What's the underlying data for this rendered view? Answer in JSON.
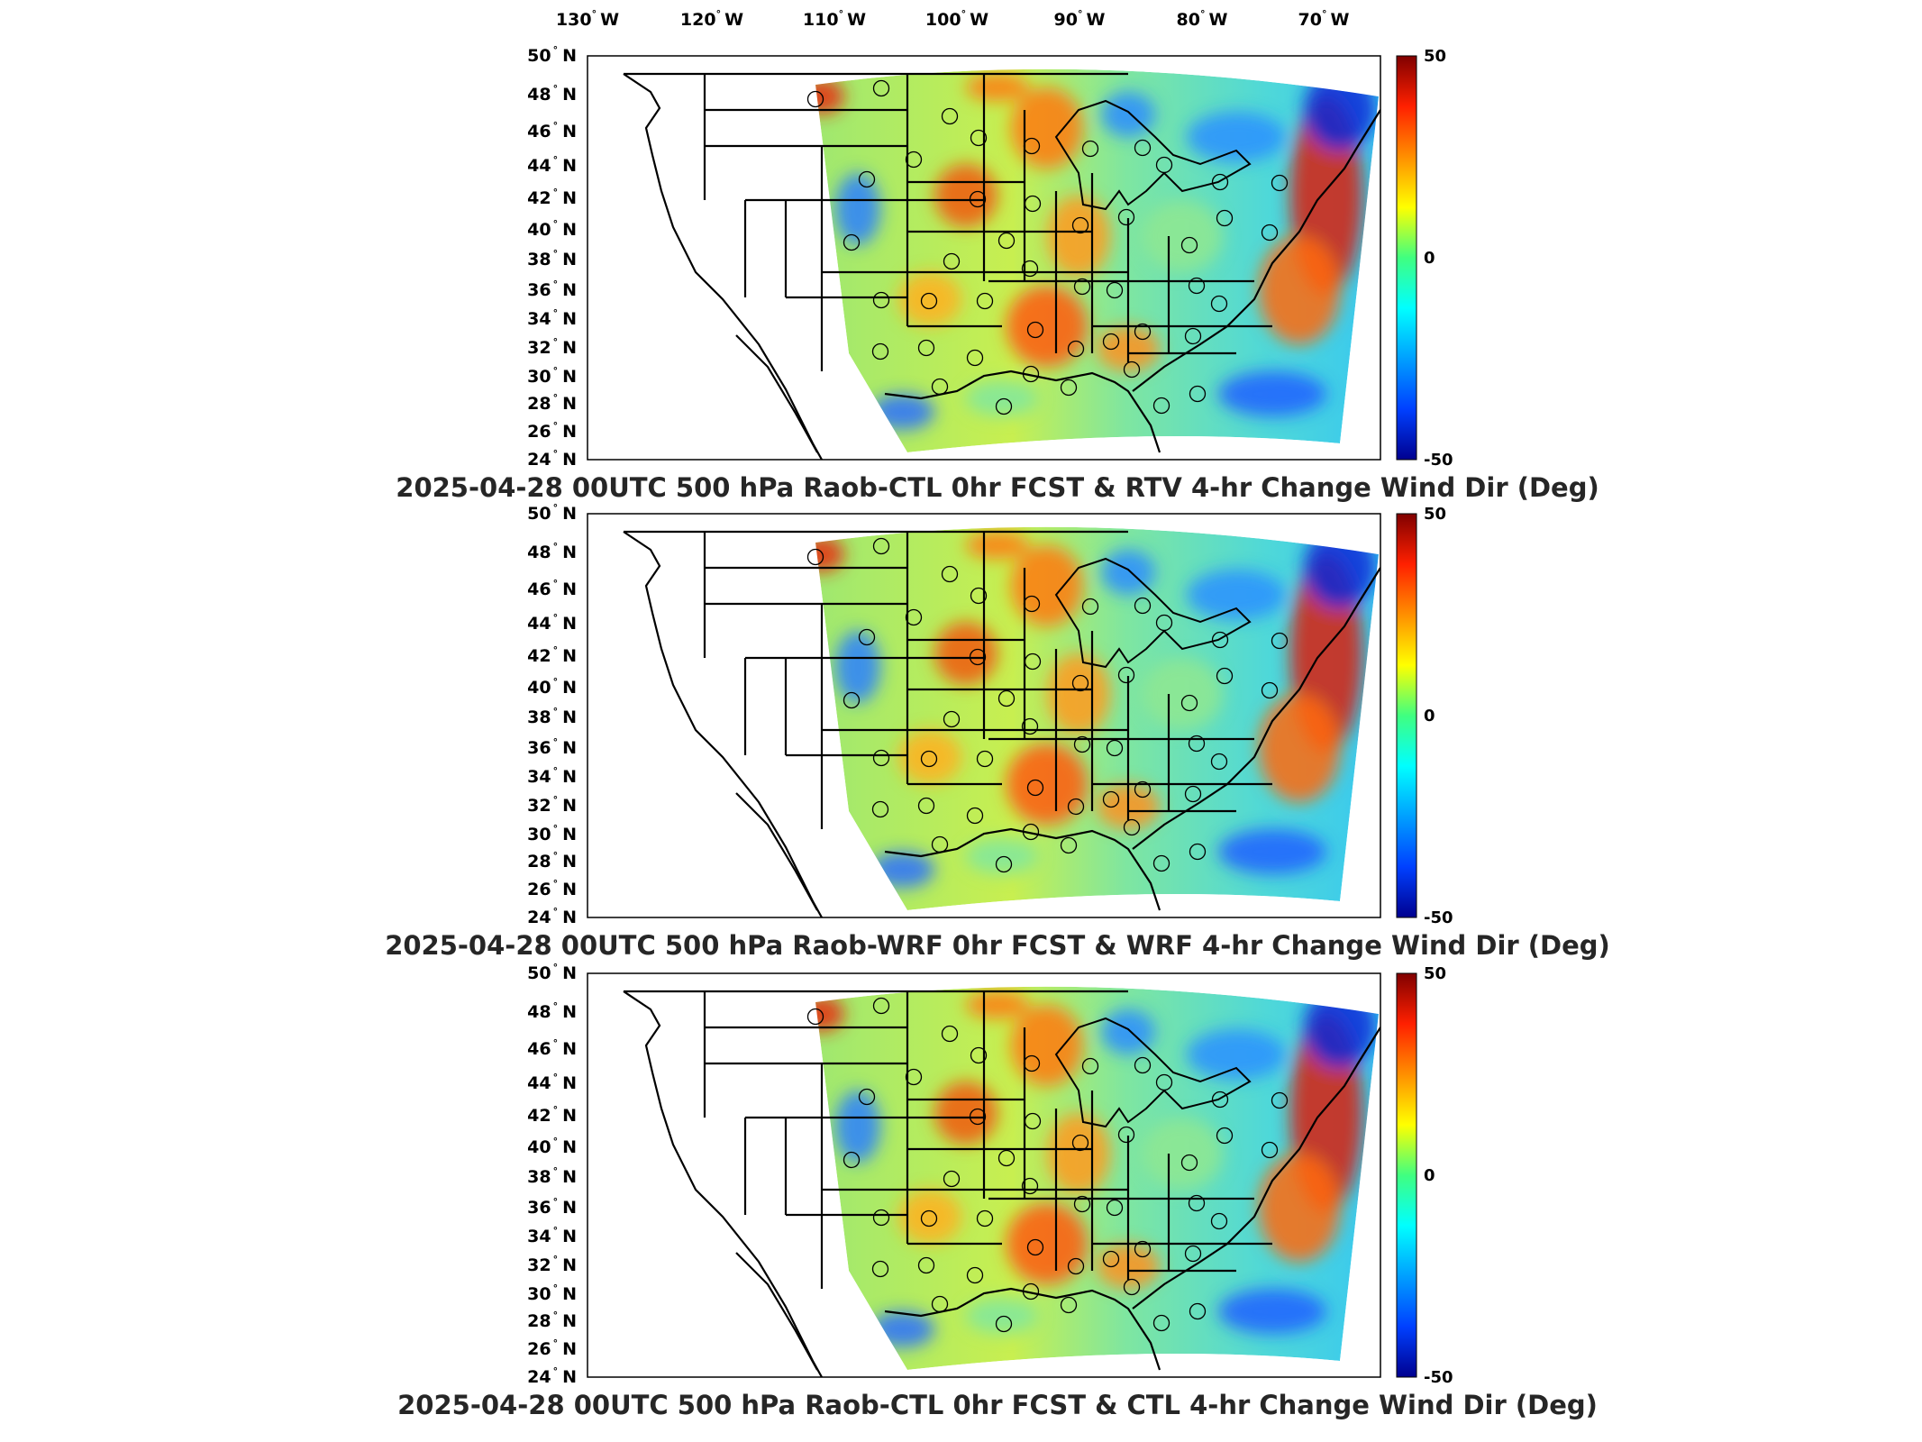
{
  "top_lon_labels": [
    {
      "deg": "130",
      "hemi": "W"
    },
    {
      "deg": "120",
      "hemi": "W"
    },
    {
      "deg": "110",
      "hemi": "W"
    },
    {
      "deg": "100",
      "hemi": "W"
    },
    {
      "deg": "90",
      "hemi": "W"
    },
    {
      "deg": "80",
      "hemi": "W"
    },
    {
      "deg": "70",
      "hemi": "W"
    }
  ],
  "lat_labels": [
    {
      "deg": "50",
      "hemi": "N"
    },
    {
      "deg": "48",
      "hemi": "N"
    },
    {
      "deg": "46",
      "hemi": "N"
    },
    {
      "deg": "44",
      "hemi": "N"
    },
    {
      "deg": "42",
      "hemi": "N"
    },
    {
      "deg": "40",
      "hemi": "N"
    },
    {
      "deg": "38",
      "hemi": "N"
    },
    {
      "deg": "36",
      "hemi": "N"
    },
    {
      "deg": "34",
      "hemi": "N"
    },
    {
      "deg": "32",
      "hemi": "N"
    },
    {
      "deg": "30",
      "hemi": "N"
    },
    {
      "deg": "28",
      "hemi": "N"
    },
    {
      "deg": "26",
      "hemi": "N"
    },
    {
      "deg": "24",
      "hemi": "N"
    }
  ],
  "colorbar": {
    "max": "50",
    "mid": "0",
    "min": "-50",
    "colors": [
      "#00008f",
      "#0040ff",
      "#00bfff",
      "#40ffbf",
      "#bfff40",
      "#ffbf00",
      "#ff4000",
      "#800000"
    ]
  },
  "panels": [
    {
      "title": "2025-04-28 00UTC 500 hPa Raob-CTL 0hr FCST & RTV 4-hr Change Wind Dir (Deg)"
    },
    {
      "title": "2025-04-28 00UTC 500 hPa Raob-WRF 0hr FCST & WRF 4-hr Change Wind Dir (Deg)"
    },
    {
      "title": "2025-04-28 00UTC 500 hPa Raob-CTL 0hr FCST & CTL 4-hr Change Wind Dir (Deg)"
    }
  ]
}
